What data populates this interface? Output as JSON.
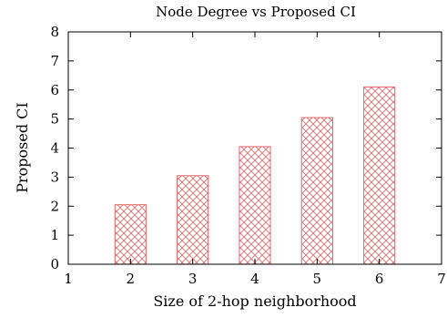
{
  "chart_data": {
    "type": "bar",
    "title": "Node Degree vs Proposed CI",
    "xlabel": "Size of 2-hop neighborhood",
    "ylabel": "Proposed CI",
    "x": [
      2,
      3,
      4,
      5,
      6
    ],
    "values": [
      2.05,
      3.05,
      4.05,
      5.05,
      6.1
    ],
    "xlim": [
      1,
      7
    ],
    "ylim": [
      0,
      8
    ],
    "xticks": [
      "1",
      "2",
      "3",
      "4",
      "5",
      "6",
      "7"
    ],
    "yticks": [
      "0",
      "1",
      "2",
      "3",
      "4",
      "5",
      "6",
      "7",
      "8"
    ],
    "grid": false,
    "bar_pattern": "crosshatch",
    "bar_color": "#e86666",
    "axis_color": "#000000"
  }
}
